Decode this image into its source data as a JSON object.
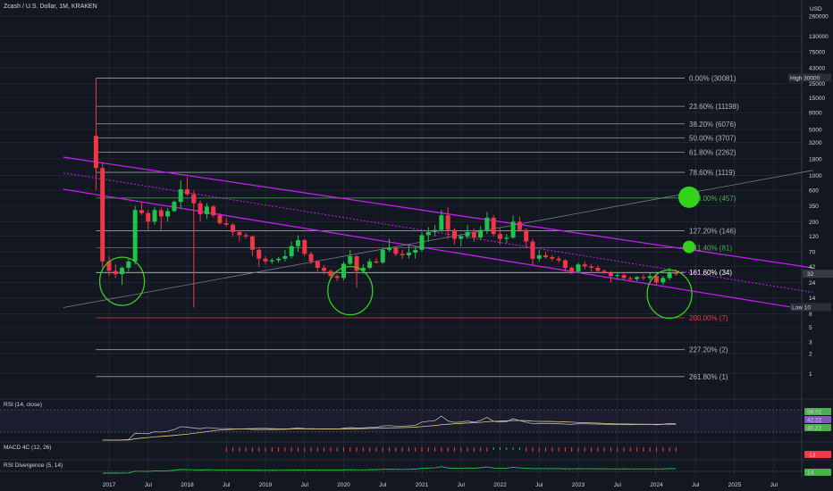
{
  "header": {
    "symbol": "Zcash / U.S. Dollar, 1M, KRAKEN",
    "currency": "USD"
  },
  "chart_data": {
    "type": "candlestick",
    "title": "Zcash / U.S. Dollar, 1M, KRAKEN",
    "y_scale": "log",
    "ylim": [
      0.8,
      260000
    ],
    "y_ticks": [
      "260000",
      "130000",
      "75000",
      "43000",
      "25000",
      "15000",
      "9000",
      "5000",
      "3200",
      "1800",
      "1000",
      "600",
      "350",
      "200",
      "120",
      "70",
      "42",
      "24",
      "14",
      "8",
      "5",
      "3",
      "2",
      "1"
    ],
    "x_ticks": [
      "2017",
      "Jul",
      "2018",
      "Jul",
      "2019",
      "Jul",
      "2020",
      "Jul",
      "2021",
      "Jul",
      "2022",
      "Jul",
      "2023",
      "Jul",
      "2024",
      "Jul",
      "2025",
      "Jul"
    ],
    "x_range": [
      "2016-09",
      "2025-12"
    ],
    "price_labels": {
      "high_label": "High",
      "high": "30000",
      "current": "32",
      "low_label": "Low",
      "low": "10"
    },
    "fib_levels": [
      {
        "label": "0.00% (30081)",
        "value": 30081,
        "color": "#b2b5be"
      },
      {
        "label": "23.60% (11198)",
        "value": 11198,
        "color": "#b2b5be"
      },
      {
        "label": "38.20% (6076)",
        "value": 6076,
        "color": "#b2b5be"
      },
      {
        "label": "50.00% (3707)",
        "value": 3707,
        "color": "#b2b5be"
      },
      {
        "label": "61.80% (2262)",
        "value": 2262,
        "color": "#b2b5be"
      },
      {
        "label": "78.60% (1119)",
        "value": 1119,
        "color": "#b2b5be"
      },
      {
        "label": "100.00% (457)",
        "value": 457,
        "color": "#4caf50"
      },
      {
        "label": "127.20% (146)",
        "value": 146,
        "color": "#b2b5be"
      },
      {
        "label": "141.40% (81)",
        "value": 81,
        "color": "#4caf50"
      },
      {
        "label": "161.60% (34)",
        "value": 34,
        "color": "#ffffff"
      },
      {
        "label": "200.00% (7)",
        "value": 7,
        "color": "#f23645"
      },
      {
        "label": "227.20% (2)",
        "value": 2.3,
        "color": "#b2b5be"
      },
      {
        "label": "261.80% (1)",
        "value": 0.9,
        "color": "#b2b5be"
      }
    ],
    "channel_lines": [
      {
        "style": "solid",
        "p1": [
          "2016-06",
          1900
        ],
        "p2": [
          "2026-01",
          40
        ]
      },
      {
        "style": "dotted",
        "p1": [
          "2016-06",
          1100
        ],
        "p2": [
          "2026-01",
          17
        ]
      },
      {
        "style": "solid",
        "p1": [
          "2016-06",
          620
        ],
        "p2": [
          "2026-01",
          9
        ]
      }
    ],
    "trend_line": {
      "p1": [
        "2016-06",
        10
      ],
      "p2": [
        "2026-01",
        1200
      ]
    },
    "circles": [
      {
        "date": "2017-03",
        "value": 25,
        "kind": "ring"
      },
      {
        "date": "2020-02",
        "value": 18,
        "kind": "ring"
      },
      {
        "date": "2024-03",
        "value": 16,
        "kind": "ring"
      },
      {
        "date": "2024-06",
        "value": 470,
        "kind": "dot"
      },
      {
        "date": "2024-06",
        "value": 83,
        "kind": "dot"
      }
    ],
    "candles": [
      {
        "d": "2016-11",
        "o": 4000,
        "h": 30081,
        "l": 600,
        "c": 1300
      },
      {
        "d": "2016-12",
        "o": 1300,
        "h": 1600,
        "l": 40,
        "c": 50
      },
      {
        "d": "2017-01",
        "o": 50,
        "h": 60,
        "l": 30,
        "c": 36
      },
      {
        "d": "2017-02",
        "o": 36,
        "h": 45,
        "l": 28,
        "c": 32
      },
      {
        "d": "2017-03",
        "o": 32,
        "h": 42,
        "l": 22,
        "c": 40
      },
      {
        "d": "2017-04",
        "o": 40,
        "h": 55,
        "l": 35,
        "c": 50
      },
      {
        "d": "2017-05",
        "o": 50,
        "h": 350,
        "l": 45,
        "c": 300
      },
      {
        "d": "2017-06",
        "o": 300,
        "h": 400,
        "l": 250,
        "c": 270
      },
      {
        "d": "2017-07",
        "o": 270,
        "h": 300,
        "l": 150,
        "c": 200
      },
      {
        "d": "2017-08",
        "o": 200,
        "h": 330,
        "l": 180,
        "c": 300
      },
      {
        "d": "2017-09",
        "o": 300,
        "h": 330,
        "l": 150,
        "c": 240
      },
      {
        "d": "2017-10",
        "o": 240,
        "h": 320,
        "l": 200,
        "c": 290
      },
      {
        "d": "2017-11",
        "o": 290,
        "h": 420,
        "l": 280,
        "c": 400
      },
      {
        "d": "2017-12",
        "o": 400,
        "h": 850,
        "l": 320,
        "c": 620
      },
      {
        "d": "2018-01",
        "o": 620,
        "h": 950,
        "l": 500,
        "c": 520
      },
      {
        "d": "2018-02",
        "o": 520,
        "h": 600,
        "l": 10,
        "c": 380
      },
      {
        "d": "2018-03",
        "o": 380,
        "h": 420,
        "l": 200,
        "c": 260
      },
      {
        "d": "2018-04",
        "o": 260,
        "h": 380,
        "l": 220,
        "c": 340
      },
      {
        "d": "2018-05",
        "o": 340,
        "h": 360,
        "l": 230,
        "c": 250
      },
      {
        "d": "2018-06",
        "o": 250,
        "h": 270,
        "l": 180,
        "c": 190
      },
      {
        "d": "2018-07",
        "o": 190,
        "h": 230,
        "l": 170,
        "c": 180
      },
      {
        "d": "2018-08",
        "o": 180,
        "h": 190,
        "l": 120,
        "c": 140
      },
      {
        "d": "2018-09",
        "o": 140,
        "h": 150,
        "l": 100,
        "c": 125
      },
      {
        "d": "2018-10",
        "o": 125,
        "h": 135,
        "l": 110,
        "c": 120
      },
      {
        "d": "2018-11",
        "o": 120,
        "h": 125,
        "l": 60,
        "c": 75
      },
      {
        "d": "2018-12",
        "o": 75,
        "h": 80,
        "l": 42,
        "c": 55
      },
      {
        "d": "2019-01",
        "o": 55,
        "h": 60,
        "l": 45,
        "c": 50
      },
      {
        "d": "2019-02",
        "o": 50,
        "h": 56,
        "l": 46,
        "c": 52
      },
      {
        "d": "2019-03",
        "o": 52,
        "h": 58,
        "l": 48,
        "c": 55
      },
      {
        "d": "2019-04",
        "o": 55,
        "h": 75,
        "l": 50,
        "c": 60
      },
      {
        "d": "2019-05",
        "o": 60,
        "h": 100,
        "l": 55,
        "c": 85
      },
      {
        "d": "2019-06",
        "o": 85,
        "h": 125,
        "l": 70,
        "c": 105
      },
      {
        "d": "2019-07",
        "o": 105,
        "h": 110,
        "l": 60,
        "c": 65
      },
      {
        "d": "2019-08",
        "o": 65,
        "h": 70,
        "l": 45,
        "c": 50
      },
      {
        "d": "2019-09",
        "o": 50,
        "h": 52,
        "l": 34,
        "c": 40
      },
      {
        "d": "2019-10",
        "o": 40,
        "h": 44,
        "l": 32,
        "c": 36
      },
      {
        "d": "2019-11",
        "o": 36,
        "h": 38,
        "l": 27,
        "c": 30
      },
      {
        "d": "2019-12",
        "o": 30,
        "h": 32,
        "l": 25,
        "c": 28
      },
      {
        "d": "2020-01",
        "o": 28,
        "h": 50,
        "l": 26,
        "c": 46
      },
      {
        "d": "2020-02",
        "o": 46,
        "h": 75,
        "l": 44,
        "c": 60
      },
      {
        "d": "2020-03",
        "o": 60,
        "h": 62,
        "l": 20,
        "c": 36
      },
      {
        "d": "2020-04",
        "o": 36,
        "h": 45,
        "l": 32,
        "c": 40
      },
      {
        "d": "2020-05",
        "o": 40,
        "h": 55,
        "l": 38,
        "c": 50
      },
      {
        "d": "2020-06",
        "o": 50,
        "h": 56,
        "l": 46,
        "c": 48
      },
      {
        "d": "2020-07",
        "o": 48,
        "h": 80,
        "l": 46,
        "c": 75
      },
      {
        "d": "2020-08",
        "o": 75,
        "h": 110,
        "l": 70,
        "c": 80
      },
      {
        "d": "2020-09",
        "o": 80,
        "h": 85,
        "l": 60,
        "c": 65
      },
      {
        "d": "2020-10",
        "o": 65,
        "h": 75,
        "l": 55,
        "c": 62
      },
      {
        "d": "2020-11",
        "o": 62,
        "h": 90,
        "l": 55,
        "c": 68
      },
      {
        "d": "2020-12",
        "o": 68,
        "h": 85,
        "l": 55,
        "c": 75
      },
      {
        "d": "2021-01",
        "o": 75,
        "h": 140,
        "l": 70,
        "c": 125
      },
      {
        "d": "2021-02",
        "o": 125,
        "h": 165,
        "l": 100,
        "c": 140
      },
      {
        "d": "2021-03",
        "o": 140,
        "h": 180,
        "l": 120,
        "c": 150
      },
      {
        "d": "2021-04",
        "o": 150,
        "h": 300,
        "l": 140,
        "c": 250
      },
      {
        "d": "2021-05",
        "o": 250,
        "h": 330,
        "l": 110,
        "c": 150
      },
      {
        "d": "2021-06",
        "o": 150,
        "h": 160,
        "l": 90,
        "c": 110
      },
      {
        "d": "2021-07",
        "o": 110,
        "h": 130,
        "l": 85,
        "c": 120
      },
      {
        "d": "2021-08",
        "o": 120,
        "h": 180,
        "l": 110,
        "c": 140
      },
      {
        "d": "2021-09",
        "o": 140,
        "h": 160,
        "l": 100,
        "c": 115
      },
      {
        "d": "2021-10",
        "o": 115,
        "h": 170,
        "l": 105,
        "c": 150
      },
      {
        "d": "2021-11",
        "o": 150,
        "h": 280,
        "l": 130,
        "c": 230
      },
      {
        "d": "2021-12",
        "o": 230,
        "h": 250,
        "l": 120,
        "c": 130
      },
      {
        "d": "2022-01",
        "o": 130,
        "h": 160,
        "l": 90,
        "c": 110
      },
      {
        "d": "2022-02",
        "o": 110,
        "h": 130,
        "l": 95,
        "c": 115
      },
      {
        "d": "2022-03",
        "o": 115,
        "h": 250,
        "l": 110,
        "c": 200
      },
      {
        "d": "2022-04",
        "o": 200,
        "h": 240,
        "l": 140,
        "c": 150
      },
      {
        "d": "2022-05",
        "o": 150,
        "h": 160,
        "l": 80,
        "c": 100
      },
      {
        "d": "2022-06",
        "o": 100,
        "h": 110,
        "l": 45,
        "c": 55
      },
      {
        "d": "2022-07",
        "o": 55,
        "h": 75,
        "l": 50,
        "c": 62
      },
      {
        "d": "2022-08",
        "o": 62,
        "h": 70,
        "l": 55,
        "c": 58
      },
      {
        "d": "2022-09",
        "o": 58,
        "h": 62,
        "l": 50,
        "c": 55
      },
      {
        "d": "2022-10",
        "o": 55,
        "h": 60,
        "l": 48,
        "c": 52
      },
      {
        "d": "2022-11",
        "o": 52,
        "h": 54,
        "l": 35,
        "c": 40
      },
      {
        "d": "2022-12",
        "o": 40,
        "h": 42,
        "l": 32,
        "c": 35
      },
      {
        "d": "2023-01",
        "o": 35,
        "h": 48,
        "l": 33,
        "c": 45
      },
      {
        "d": "2023-02",
        "o": 45,
        "h": 50,
        "l": 38,
        "c": 42
      },
      {
        "d": "2023-03",
        "o": 42,
        "h": 46,
        "l": 33,
        "c": 40
      },
      {
        "d": "2023-04",
        "o": 40,
        "h": 44,
        "l": 34,
        "c": 36
      },
      {
        "d": "2023-05",
        "o": 36,
        "h": 38,
        "l": 32,
        "c": 34
      },
      {
        "d": "2023-06",
        "o": 34,
        "h": 36,
        "l": 24,
        "c": 30
      },
      {
        "d": "2023-07",
        "o": 30,
        "h": 34,
        "l": 27,
        "c": 31
      },
      {
        "d": "2023-08",
        "o": 31,
        "h": 33,
        "l": 26,
        "c": 28
      },
      {
        "d": "2023-09",
        "o": 28,
        "h": 30,
        "l": 25,
        "c": 27
      },
      {
        "d": "2023-10",
        "o": 27,
        "h": 30,
        "l": 25,
        "c": 29
      },
      {
        "d": "2023-11",
        "o": 29,
        "h": 32,
        "l": 26,
        "c": 28
      },
      {
        "d": "2023-12",
        "o": 28,
        "h": 34,
        "l": 26,
        "c": 30
      },
      {
        "d": "2024-01",
        "o": 30,
        "h": 33,
        "l": 22,
        "c": 24
      },
      {
        "d": "2024-02",
        "o": 24,
        "h": 30,
        "l": 22,
        "c": 28
      },
      {
        "d": "2024-03",
        "o": 28,
        "h": 40,
        "l": 26,
        "c": 34
      },
      {
        "d": "2024-04",
        "o": 34,
        "h": 38,
        "l": 30,
        "c": 32
      }
    ],
    "indicators": [
      {
        "label": "RSI (14, close)",
        "values": [
          "56.02",
          "42.22",
          "40.22"
        ]
      },
      {
        "label": "MACD 4C (12, 26)",
        "values": [
          "-13"
        ]
      },
      {
        "label": "RSI Divergence (5, 14)",
        "values": [
          "14"
        ]
      }
    ]
  },
  "colors": {
    "up": "#26a69a",
    "green": "#1fc44a",
    "down": "#f23645",
    "channel": "#c21ff0",
    "circle": "#34d319",
    "grid": "#2a2e39"
  }
}
